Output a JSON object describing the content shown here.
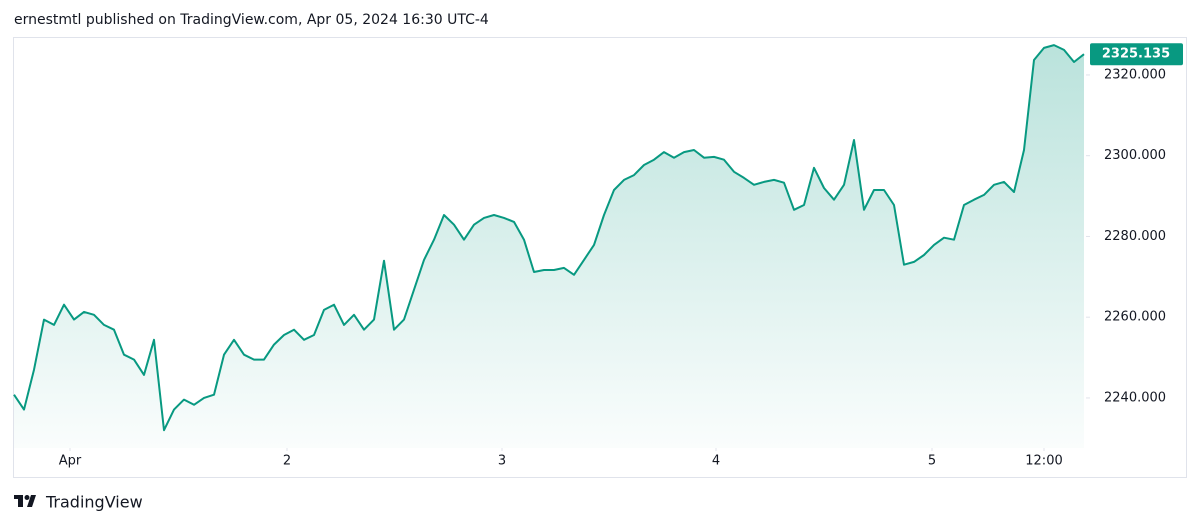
{
  "header": "ernestmtl published on TradingView.com, Apr 05, 2024 16:30 UTC-4",
  "footer": {
    "brand": "TradingView"
  },
  "chart_data": {
    "type": "area",
    "x": [
      0,
      1,
      2,
      3,
      4,
      5,
      6,
      7,
      8,
      9,
      10,
      11,
      12,
      13,
      14,
      15,
      16,
      17,
      18,
      19,
      20,
      21,
      22,
      23,
      24,
      25,
      26,
      27,
      28,
      29,
      30,
      31,
      32,
      33,
      34,
      35,
      36,
      37,
      38,
      39,
      40,
      41,
      42,
      43,
      44,
      45,
      46,
      47,
      48,
      49,
      50,
      51,
      52,
      53,
      54,
      55,
      56,
      57,
      58,
      59,
      60,
      61,
      62,
      63,
      64,
      65,
      66,
      67,
      68,
      69,
      70,
      71,
      72,
      73,
      74,
      75,
      76,
      77,
      78,
      79,
      80,
      81,
      82,
      83,
      84,
      85,
      86,
      87,
      88,
      89,
      90,
      91,
      92,
      93,
      94,
      95,
      96,
      97,
      98,
      99,
      100,
      101,
      102,
      103,
      104,
      105,
      106,
      107
    ],
    "series": [
      {
        "color": "#089981",
        "values": [
          2240.8,
          2237.1,
          2247.0,
          2259.4,
          2258.1,
          2263.1,
          2259.4,
          2261.3,
          2260.6,
          2258.1,
          2256.9,
          2250.7,
          2249.5,
          2245.7,
          2254.4,
          2232.0,
          2237.1,
          2239.6,
          2238.3,
          2240.0,
          2240.8,
          2250.7,
          2254.4,
          2250.7,
          2249.5,
          2249.5,
          2253.2,
          2255.6,
          2256.9,
          2254.4,
          2255.6,
          2261.8,
          2263.1,
          2258.1,
          2260.6,
          2256.9,
          2259.4,
          2274.0,
          2256.9,
          2259.4,
          2266.8,
          2274.2,
          2279.2,
          2285.3,
          2282.9,
          2279.2,
          2282.9,
          2284.6,
          2285.3,
          2284.6,
          2283.6,
          2279.2,
          2271.2,
          2271.7,
          2271.7,
          2272.2,
          2270.5,
          2274.2,
          2277.9,
          2285.3,
          2291.5,
          2294.0,
          2295.2,
          2297.7,
          2299.0,
          2300.9,
          2299.5,
          2300.9,
          2301.4,
          2299.5,
          2299.7,
          2299.0,
          2296.0,
          2294.5,
          2292.8,
          2293.5,
          2294.0,
          2293.3,
          2286.6,
          2287.8,
          2297.0,
          2292.0,
          2289.1,
          2292.8,
          2303.9,
          2286.6,
          2291.5,
          2291.5,
          2287.8,
          2273.0,
          2273.7,
          2275.4,
          2277.9,
          2279.7,
          2279.2,
          2287.8,
          2289.1,
          2290.3,
          2292.8,
          2293.5,
          2291.0,
          2301.4,
          2323.7,
          2326.7,
          2327.4,
          2326.2,
          2323.2,
          2325.135
        ]
      }
    ],
    "xlim": [
      0,
      107.2
    ],
    "xticks": [
      {
        "value": 5.6,
        "label": "Apr"
      },
      {
        "value": 27.3,
        "label": "2"
      },
      {
        "value": 48.8,
        "label": "3"
      },
      {
        "value": 70.2,
        "label": "4"
      },
      {
        "value": 91.8,
        "label": "5"
      },
      {
        "value": 103,
        "label": "12:00"
      }
    ],
    "ylim": [
      2227.6,
      2329.4
    ],
    "yticks": [
      {
        "value": 2240,
        "label": "2240.000"
      },
      {
        "value": 2260,
        "label": "2260.000"
      },
      {
        "value": 2280,
        "label": "2280.000"
      },
      {
        "value": 2300,
        "label": "2300.000"
      },
      {
        "value": 2320,
        "label": "2320.000"
      }
    ]
  }
}
